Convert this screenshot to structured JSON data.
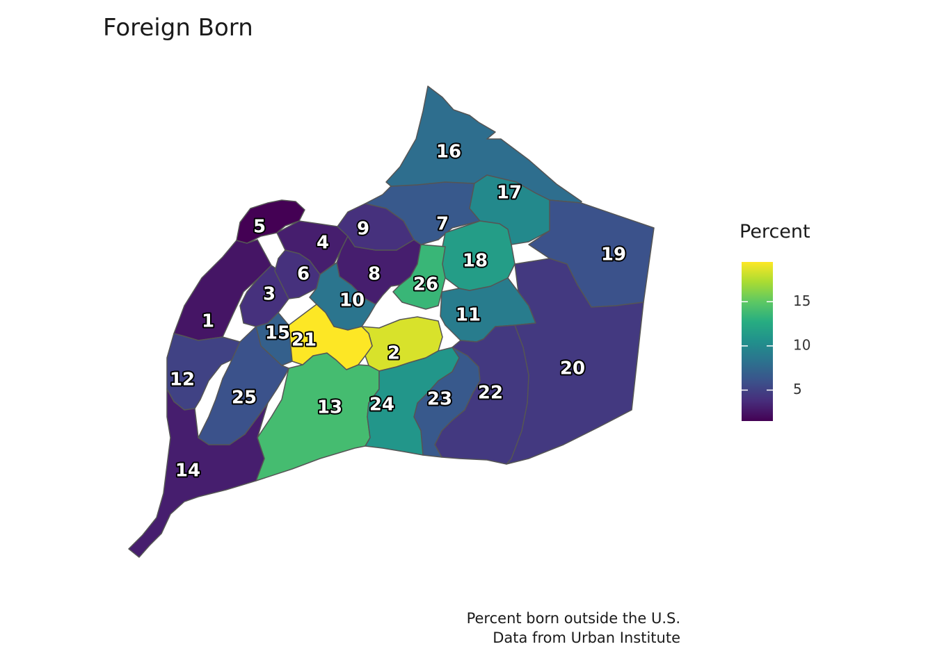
{
  "title": "Foreign Born",
  "caption": {
    "line1": "Percent born outside the U.S.",
    "line2": "Data from Urban Institute"
  },
  "legend": {
    "title": "Percent",
    "range": [
      1.5,
      19.5
    ],
    "ticks": [
      5,
      10,
      15
    ],
    "colors": [
      "#440154",
      "#472D7B",
      "#3B528B",
      "#2C728E",
      "#21908C",
      "#27AD81",
      "#5DC863",
      "#AADC32",
      "#FDE725"
    ]
  },
  "chart_data": {
    "type": "choropleth",
    "title": "Foreign Born",
    "fill_variable": "Percent",
    "districts": [
      {
        "label": "1",
        "value": 2.5
      },
      {
        "label": "2",
        "value": 18.5
      },
      {
        "label": "3",
        "value": 4.0
      },
      {
        "label": "4",
        "value": 3.0
      },
      {
        "label": "5",
        "value": 1.5
      },
      {
        "label": "6",
        "value": 4.0
      },
      {
        "label": "7",
        "value": 6.5
      },
      {
        "label": "8",
        "value": 3.0
      },
      {
        "label": "9",
        "value": 4.0
      },
      {
        "label": "10",
        "value": 8.5
      },
      {
        "label": "11",
        "value": 9.0
      },
      {
        "label": "12",
        "value": 5.0
      },
      {
        "label": "13",
        "value": 14.0
      },
      {
        "label": "14",
        "value": 3.0
      },
      {
        "label": "15",
        "value": 7.0
      },
      {
        "label": "16",
        "value": 8.0
      },
      {
        "label": "17",
        "value": 10.0
      },
      {
        "label": "18",
        "value": 11.5
      },
      {
        "label": "19",
        "value": 6.0
      },
      {
        "label": "20",
        "value": 4.5
      },
      {
        "label": "21",
        "value": 19.5
      },
      {
        "label": "22",
        "value": 4.5
      },
      {
        "label": "23",
        "value": 6.5
      },
      {
        "label": "24",
        "value": 11.0
      },
      {
        "label": "25",
        "value": 6.0
      },
      {
        "label": "26",
        "value": 13.5
      }
    ]
  }
}
